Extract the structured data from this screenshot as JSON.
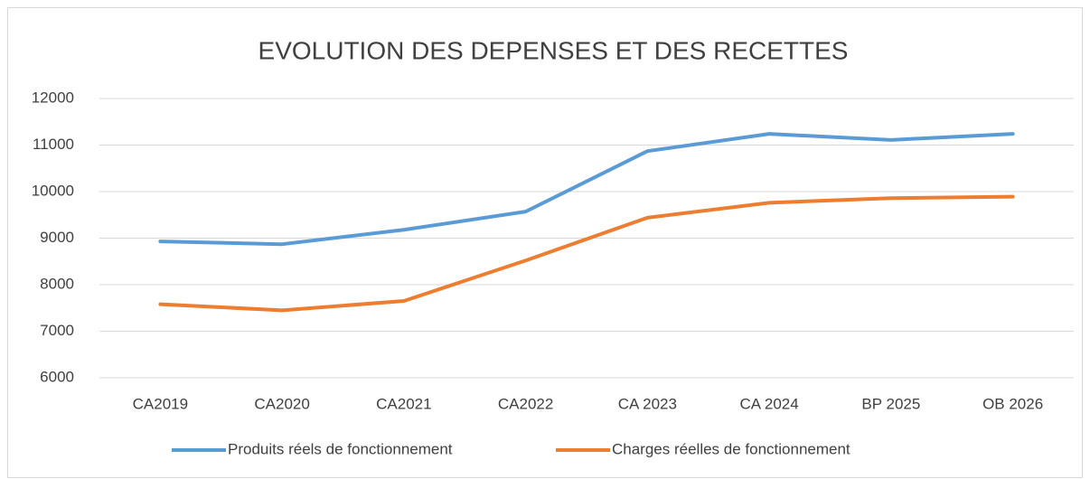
{
  "chart_data": {
    "type": "line",
    "title": "EVOLUTION DES DEPENSES ET DES RECETTES",
    "categories": [
      "CA2019",
      "CA2020",
      "CA2021",
      "CA2022",
      "CA 2023",
      "CA 2024",
      "BP 2025",
      "OB 2026"
    ],
    "series": [
      {
        "name": "Produits réels de fonctionnement",
        "color": "#5b9bd5",
        "values": [
          8930,
          8870,
          9180,
          9570,
          10870,
          11240,
          11110,
          11240
        ]
      },
      {
        "name": "Charges réelles de fonctionnement",
        "color": "#ed7d31",
        "values": [
          7580,
          7450,
          7650,
          8520,
          9440,
          9760,
          9860,
          9890
        ]
      }
    ],
    "ylim": [
      6000,
      12000
    ],
    "yticks": [
      6000,
      7000,
      8000,
      9000,
      10000,
      11000,
      12000
    ],
    "grid": true,
    "legend": "bottom"
  }
}
